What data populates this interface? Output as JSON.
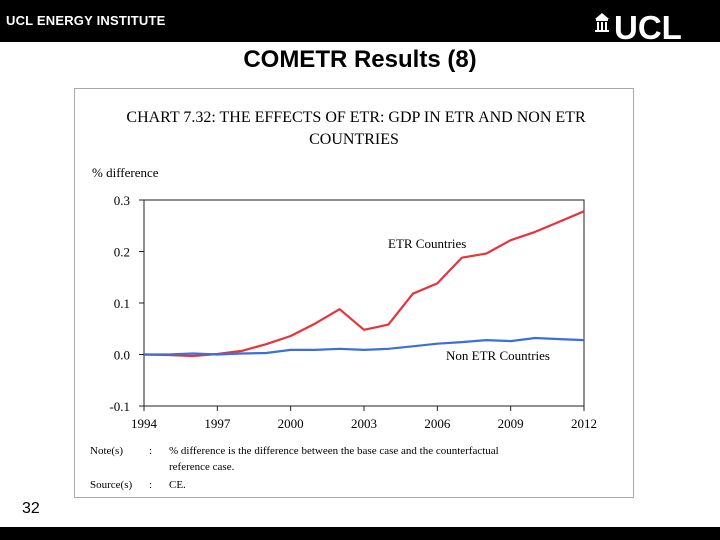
{
  "header": {
    "institute": "UCL ENERGY INSTITUTE",
    "logo_text": "UCL"
  },
  "slide": {
    "title": "COMETR Results (8)",
    "number": "32"
  },
  "colors": {
    "etr": "#e8323c",
    "non_etr": "#3a6fdc",
    "bar": "#000000"
  },
  "chart_data": {
    "type": "line",
    "title_line1": "CHART 7.32: THE EFFECTS OF ETR: GDP IN ETR AND NON ETR",
    "title_line2": "COUNTRIES",
    "ylabel": "% difference",
    "xlabel": "",
    "xlim": [
      1994,
      2012
    ],
    "ylim": [
      -0.1,
      0.3
    ],
    "x_ticks": [
      1994,
      1997,
      2000,
      2003,
      2006,
      2009,
      2012
    ],
    "x_tick_labels": [
      "1994",
      "1997",
      "2000",
      "2003",
      "2006",
      "2009",
      "2012"
    ],
    "y_ticks": [
      0.3,
      0.2,
      0.1,
      0.0,
      -0.1
    ],
    "y_tick_labels": [
      "0.3",
      "0.2",
      "0.1",
      "0.0",
      "-0.1"
    ],
    "series": [
      {
        "name": "ETR Countries",
        "color": "#e8323c",
        "x": [
          1994,
          1995,
          1996,
          1997,
          1998,
          1999,
          2000,
          2001,
          2002,
          2003,
          2004,
          2005,
          2006,
          2007,
          2008,
          2009,
          2010,
          2011,
          2012
        ],
        "values": [
          0.0,
          -0.001,
          -0.003,
          0.001,
          0.007,
          0.02,
          0.036,
          0.06,
          0.088,
          0.048,
          0.058,
          0.118,
          0.138,
          0.188,
          0.196,
          0.222,
          0.238,
          0.258,
          0.278
        ]
      },
      {
        "name": "Non ETR Countries",
        "color": "#3a6fdc",
        "x": [
          1994,
          1995,
          1996,
          1997,
          1998,
          1999,
          2000,
          2001,
          2002,
          2003,
          2004,
          2005,
          2006,
          2007,
          2008,
          2009,
          2010,
          2011,
          2012
        ],
        "values": [
          0.0,
          0.0,
          0.002,
          0.0,
          0.002,
          0.003,
          0.009,
          0.009,
          0.011,
          0.009,
          0.011,
          0.016,
          0.021,
          0.024,
          0.028,
          0.026,
          0.032,
          0.03,
          0.028
        ]
      }
    ],
    "annotations": {
      "etr_label": "ETR Countries",
      "non_etr_label": "Non ETR Countries"
    },
    "note_label": "Note(s)",
    "note_colon": ":",
    "note_line1": "% difference is the difference between the base case and the counterfactual",
    "note_line2": "reference case.",
    "source_label": "Source(s)",
    "source_colon": ":",
    "source_text": "CE."
  }
}
